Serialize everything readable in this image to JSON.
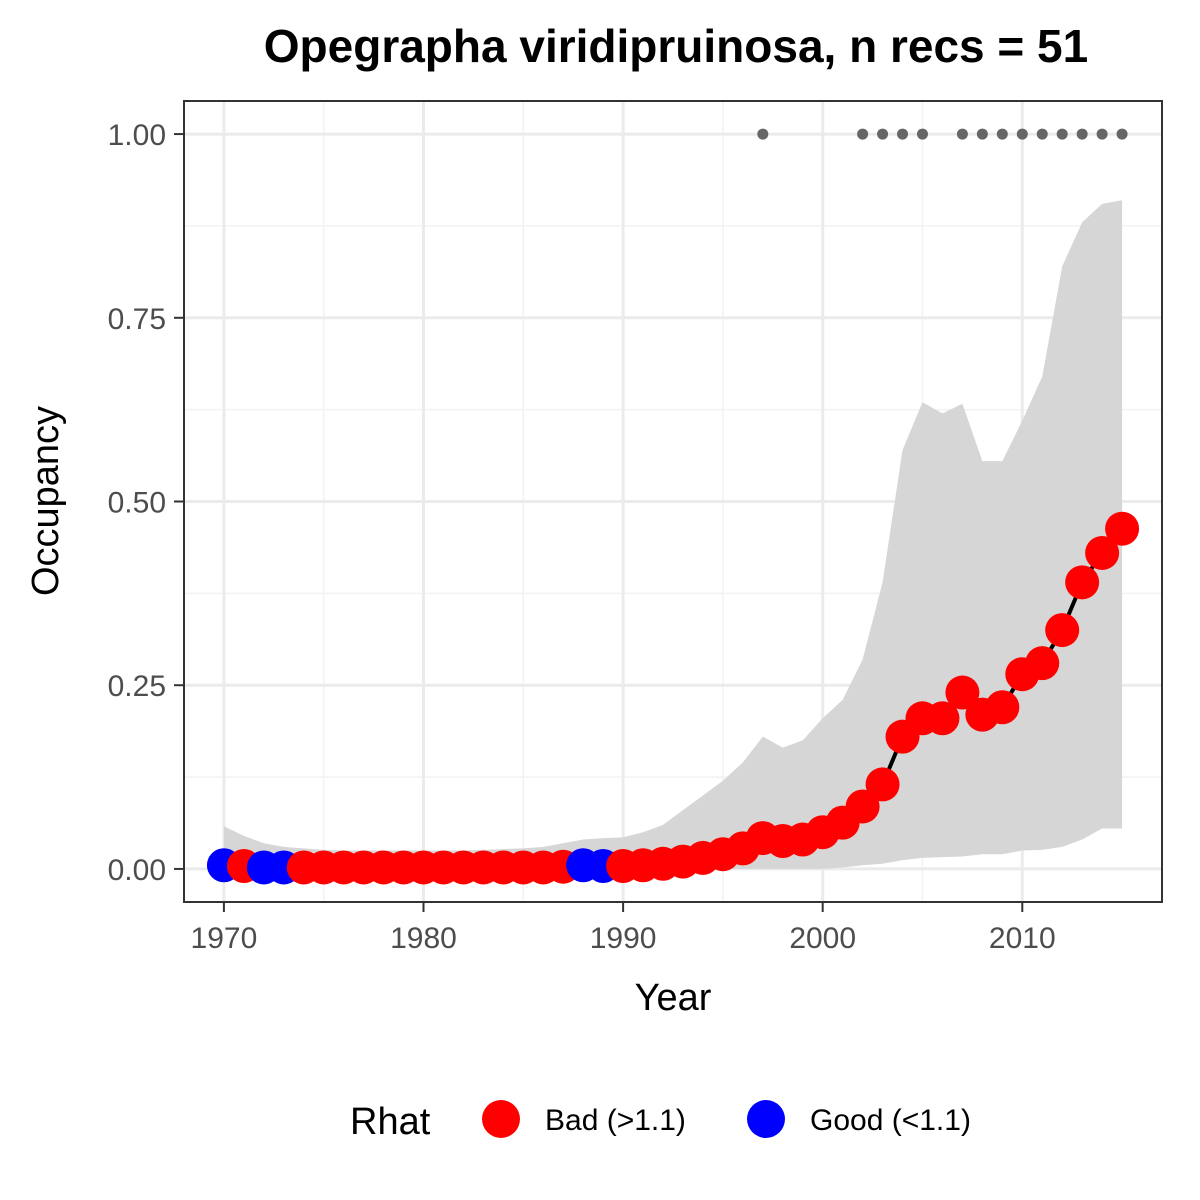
{
  "chart_data": {
    "type": "line",
    "title": "Opegrapha viridipruinosa, n recs = 51",
    "xlabel": "Year",
    "ylabel": "Occupancy",
    "xlim": [
      1968,
      2017
    ],
    "ylim": [
      -0.045,
      1.045
    ],
    "x_ticks": [
      1970,
      1980,
      1990,
      2000,
      2010
    ],
    "x_tick_labels": [
      "1970",
      "1980",
      "1990",
      "2000",
      "2010"
    ],
    "y_ticks": [
      0,
      0.25,
      0.5,
      0.75,
      1.0
    ],
    "y_tick_labels": [
      "0.00",
      "0.25",
      "0.50",
      "0.75",
      "1.00"
    ],
    "grid": true,
    "legend": {
      "title": "Rhat",
      "position": "bottom",
      "entries": [
        {
          "label": "Bad (>1.1)",
          "color": "#ff0000"
        },
        {
          "label": "Good (<1.1)",
          "color": "#0000ff"
        }
      ]
    },
    "colors": {
      "bad": "#ff0000",
      "good": "#0000ff",
      "ribbon": "#d6d6d6",
      "record_dots": "#666666"
    },
    "years": [
      1970,
      1971,
      1972,
      1973,
      1974,
      1975,
      1976,
      1977,
      1978,
      1979,
      1980,
      1981,
      1982,
      1983,
      1984,
      1985,
      1986,
      1987,
      1988,
      1989,
      1990,
      1991,
      1992,
      1993,
      1994,
      1995,
      1996,
      1997,
      1998,
      1999,
      2000,
      2001,
      2002,
      2003,
      2004,
      2005,
      2006,
      2007,
      2008,
      2009,
      2010,
      2011,
      2012,
      2013,
      2014,
      2015
    ],
    "occupancy": [
      0.005,
      0.004,
      0.002,
      0.002,
      0.002,
      0.002,
      0.002,
      0.002,
      0.002,
      0.002,
      0.002,
      0.002,
      0.002,
      0.002,
      0.002,
      0.002,
      0.002,
      0.003,
      0.005,
      0.004,
      0.004,
      0.005,
      0.007,
      0.01,
      0.015,
      0.02,
      0.028,
      0.042,
      0.038,
      0.04,
      0.05,
      0.063,
      0.085,
      0.115,
      0.18,
      0.205,
      0.205,
      0.24,
      0.21,
      0.22,
      0.265,
      0.28,
      0.325,
      0.39,
      0.43,
      0.463
    ],
    "rhat_status": [
      "good",
      "bad",
      "good",
      "good",
      "bad",
      "bad",
      "bad",
      "bad",
      "bad",
      "bad",
      "bad",
      "bad",
      "bad",
      "bad",
      "bad",
      "bad",
      "bad",
      "bad",
      "good",
      "good",
      "bad",
      "bad",
      "bad",
      "bad",
      "bad",
      "bad",
      "bad",
      "bad",
      "bad",
      "bad",
      "bad",
      "bad",
      "bad",
      "bad",
      "bad",
      "bad",
      "bad",
      "bad",
      "bad",
      "bad",
      "bad",
      "bad",
      "bad",
      "bad",
      "bad",
      "bad"
    ],
    "ribbon_lower": [
      0,
      0,
      0,
      0,
      0,
      0,
      0,
      0,
      0,
      0,
      0,
      0,
      0,
      0,
      0,
      0,
      0,
      0,
      0,
      0,
      0,
      0,
      0,
      0,
      0,
      0,
      0,
      0,
      0,
      0,
      0,
      0.002,
      0.005,
      0.007,
      0.012,
      0.015,
      0.016,
      0.017,
      0.02,
      0.02,
      0.025,
      0.026,
      0.03,
      0.04,
      0.055,
      0.055
    ],
    "ribbon_upper": [
      0.058,
      0.045,
      0.035,
      0.03,
      0.028,
      0.026,
      0.025,
      0.025,
      0.025,
      0.025,
      0.025,
      0.025,
      0.025,
      0.026,
      0.027,
      0.028,
      0.03,
      0.035,
      0.04,
      0.042,
      0.043,
      0.05,
      0.06,
      0.08,
      0.1,
      0.12,
      0.145,
      0.18,
      0.165,
      0.175,
      0.205,
      0.23,
      0.285,
      0.39,
      0.57,
      0.635,
      0.62,
      0.633,
      0.555,
      0.555,
      0.61,
      0.67,
      0.82,
      0.88,
      0.905,
      0.91
    ],
    "record_years": [
      1997,
      2002,
      2003,
      2004,
      2005,
      2007,
      2008,
      2009,
      2010,
      2011,
      2012,
      2013,
      2014,
      2015
    ],
    "record_value": 1.0
  }
}
